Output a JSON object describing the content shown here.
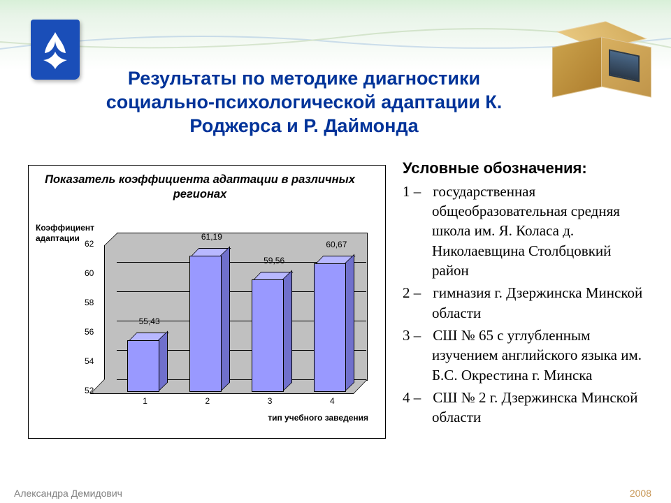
{
  "title": "Результаты по методике диагностики социально-психологической адаптации К. Роджерса и Р. Даймонда",
  "footer": {
    "author": "Александра Демидович",
    "year": "2008"
  },
  "chart": {
    "type": "bar",
    "title": "Показатель коэффициента адаптации в различных регионах",
    "ylabel_line1": "Коэффициент",
    "ylabel_line2": "адаптации",
    "xlabel": "тип учебного заведения",
    "categories": [
      "1",
      "2",
      "3",
      "4"
    ],
    "values": [
      55.43,
      61.19,
      59.56,
      60.67
    ],
    "value_labels": [
      "55,43",
      "61,19",
      "59,56",
      "60,67"
    ],
    "ymin": 52,
    "ymax": 62,
    "ystep": 2,
    "yticks": [
      "52",
      "54",
      "56",
      "58",
      "60",
      "62"
    ],
    "bar_front_color": "#9999ff",
    "bar_side_color": "#7070cc",
    "bar_top_color": "#b8b8ff",
    "wall_color": "#c0c0c0",
    "grid_color": "#000000",
    "border_color": "#000000",
    "background": "#ffffff",
    "title_fontsize": 16.5,
    "label_fontsize": 12
  },
  "legend": {
    "title": "Условные обозначения:",
    "items": [
      {
        "num": "1",
        "dash": "–",
        "text": "государственная общеобразовательная средняя школа им.  Я. Коласа д. Николаевщина Столбцовкий район"
      },
      {
        "num": "2",
        "dash": "–",
        "text": " гимназия г. Дзержинска Минской области"
      },
      {
        "num": "3",
        "dash": "–",
        "text": "СШ № 65 с углубленным изучением английского языка им. Б.С. Окрестина г. Минска"
      },
      {
        "num": "4",
        "dash": "–",
        "text": "СШ № 2 г. Дзержинска Минской области"
      }
    ]
  }
}
